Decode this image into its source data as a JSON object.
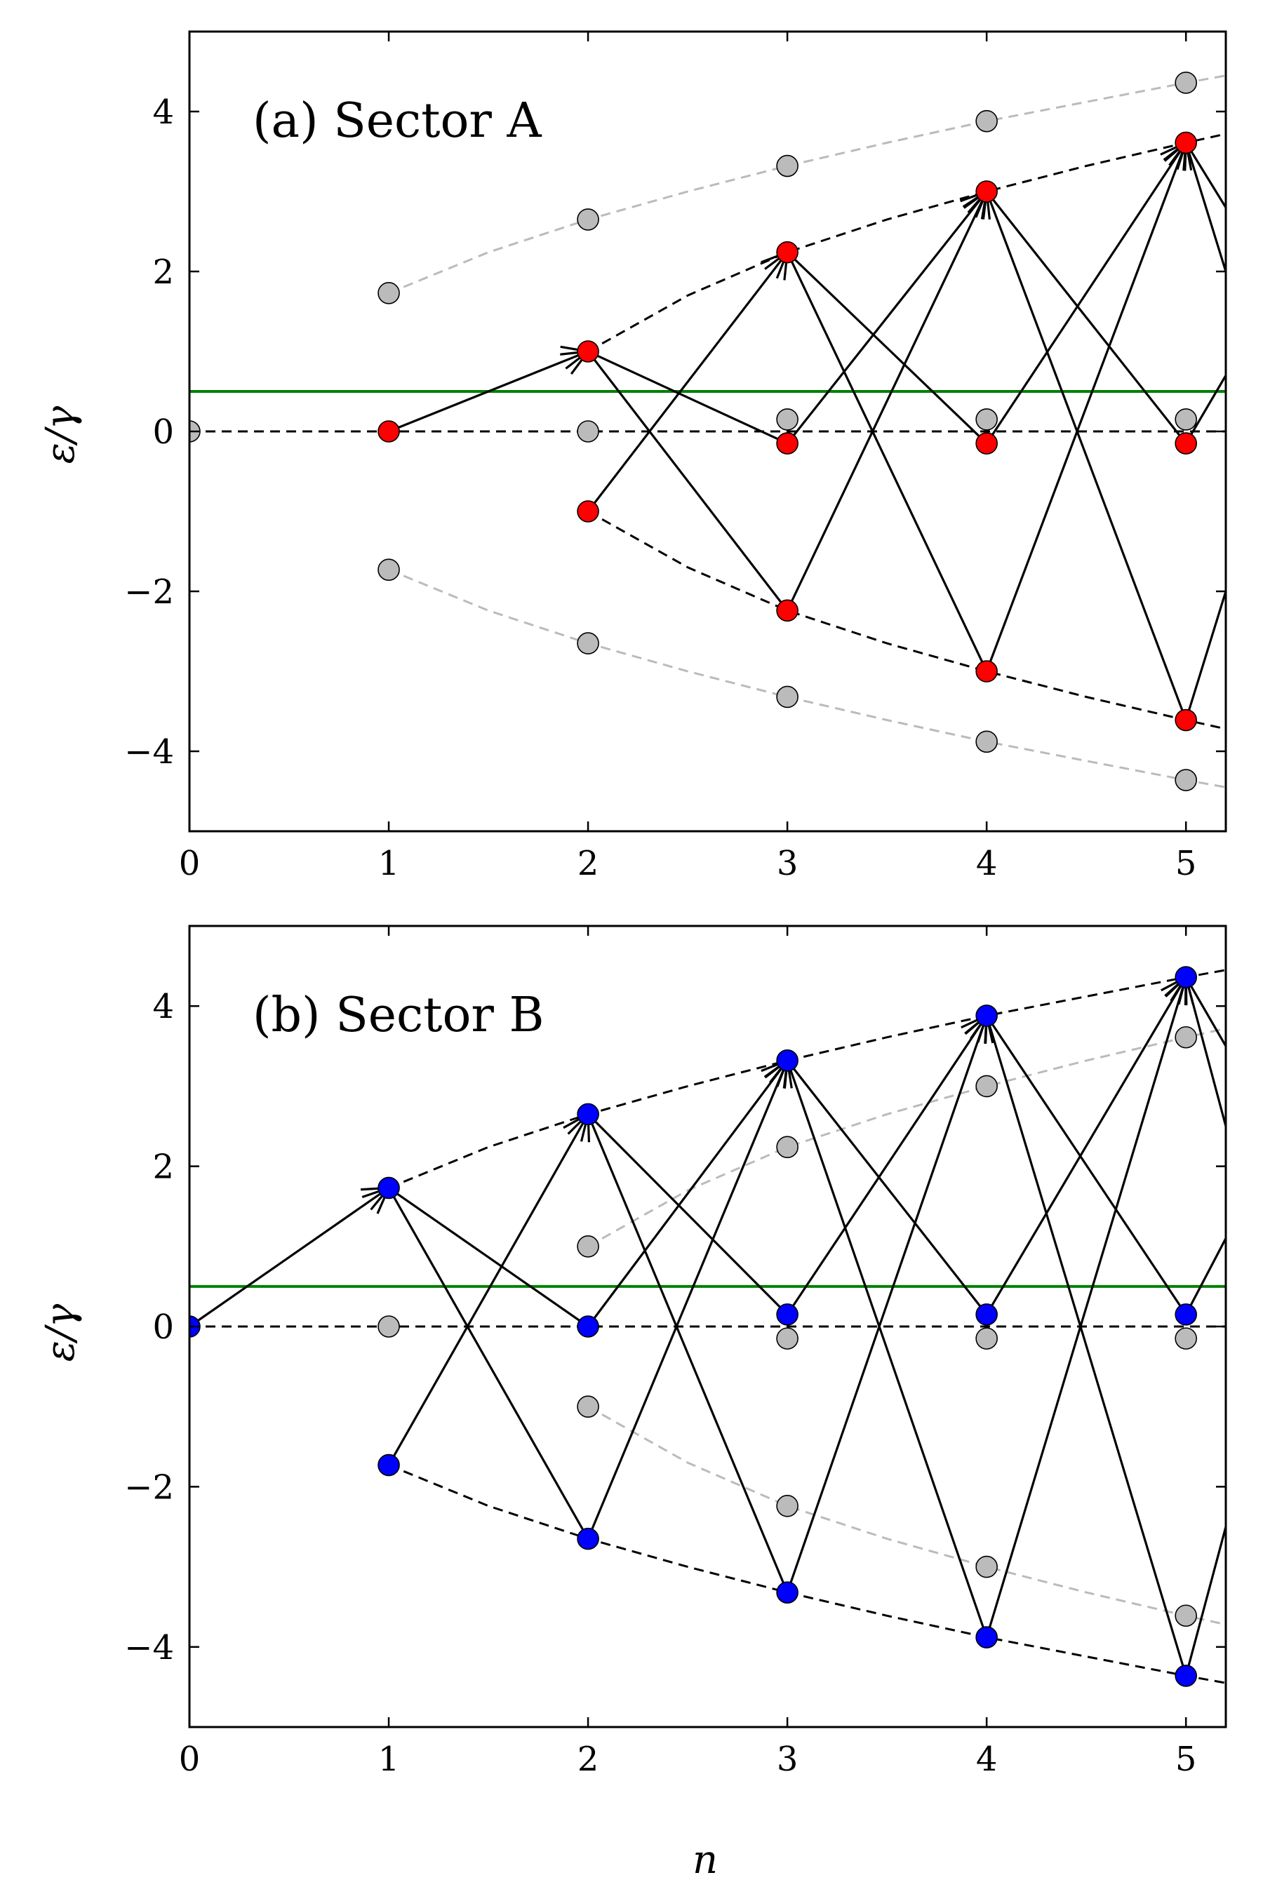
{
  "chart_data": [
    {
      "type": "scatter",
      "title": "(a) Sector A",
      "xlabel": "",
      "ylabel": "ε/γ",
      "xlim": [
        0,
        5.2
      ],
      "ylim": [
        -5,
        5
      ],
      "xticks": [
        "0",
        "1",
        "2",
        "3",
        "4",
        "5"
      ],
      "yticks": [
        "−4",
        "−2",
        "0",
        "2",
        "4"
      ],
      "highlight_color": "#ff0000",
      "gray_points": [
        {
          "n": 0,
          "e": 0
        },
        {
          "n": 1,
          "e": 1.73
        },
        {
          "n": 1,
          "e": -1.73
        },
        {
          "n": 2,
          "e": 2.65
        },
        {
          "n": 2,
          "e": 0
        },
        {
          "n": 2,
          "e": -2.65
        },
        {
          "n": 3,
          "e": 3.32
        },
        {
          "n": 3,
          "e": 0.15
        },
        {
          "n": 3,
          "e": -3.32
        },
        {
          "n": 4,
          "e": 3.88
        },
        {
          "n": 4,
          "e": 0.15
        },
        {
          "n": 4,
          "e": -3.88
        },
        {
          "n": 5,
          "e": 4.36
        },
        {
          "n": 5,
          "e": 0.15
        },
        {
          "n": 5,
          "e": -4.36
        }
      ],
      "colored_points": [
        {
          "n": 1,
          "e": 0
        },
        {
          "n": 2,
          "e": 1.0
        },
        {
          "n": 2,
          "e": -1.0
        },
        {
          "n": 3,
          "e": 2.24
        },
        {
          "n": 3,
          "e": -0.15
        },
        {
          "n": 3,
          "e": -2.24
        },
        {
          "n": 4,
          "e": 3.0
        },
        {
          "n": 4,
          "e": -0.15
        },
        {
          "n": 4,
          "e": -3.0
        },
        {
          "n": 5,
          "e": 3.61
        },
        {
          "n": 5,
          "e": -0.15
        },
        {
          "n": 5,
          "e": -3.61
        }
      ],
      "transitions": [
        {
          "from": [
            1,
            0
          ],
          "to": [
            2,
            1.0
          ],
          "arrow": true
        },
        {
          "from": [
            2,
            -1.0
          ],
          "to": [
            3,
            2.24
          ],
          "arrow": true
        },
        {
          "from": [
            2,
            1.0
          ],
          "to": [
            3,
            -2.24
          ],
          "arrow": false
        },
        {
          "from": [
            2,
            1.0
          ],
          "to": [
            3,
            -0.15
          ],
          "arrow": false
        },
        {
          "from": [
            3,
            -0.15
          ],
          "to": [
            4,
            3.0
          ],
          "arrow": true
        },
        {
          "from": [
            3,
            -2.24
          ],
          "to": [
            4,
            3.0
          ],
          "arrow": true
        },
        {
          "from": [
            3,
            2.24
          ],
          "to": [
            4,
            -0.15
          ],
          "arrow": false
        },
        {
          "from": [
            3,
            2.24
          ],
          "to": [
            4,
            -3.0
          ],
          "arrow": false
        },
        {
          "from": [
            4,
            -0.15
          ],
          "to": [
            5,
            3.61
          ],
          "arrow": true
        },
        {
          "from": [
            4,
            -3.0
          ],
          "to": [
            5,
            3.61
          ],
          "arrow": true
        },
        {
          "from": [
            4,
            3.0
          ],
          "to": [
            5,
            -0.15
          ],
          "arrow": false
        },
        {
          "from": [
            4,
            3.0
          ],
          "to": [
            5,
            -3.61
          ],
          "arrow": false
        },
        {
          "from": [
            5,
            3.61
          ],
          "to": [
            5.2,
            2.8
          ],
          "arrow": false
        },
        {
          "from": [
            5,
            3.61
          ],
          "to": [
            5.2,
            2.0
          ],
          "arrow": false
        },
        {
          "from": [
            5,
            -0.15
          ],
          "to": [
            5.2,
            0.7
          ],
          "arrow": false
        },
        {
          "from": [
            5,
            -3.61
          ],
          "to": [
            5.2,
            -2.0
          ],
          "arrow": false
        }
      ],
      "dashed_curves": [
        {
          "color": "#000000",
          "points": [
            [
              0,
              0
            ],
            [
              5.2,
              0
            ]
          ]
        },
        {
          "color": "#000000",
          "points": [
            [
              2,
              1.0
            ],
            [
              2.5,
              1.7
            ],
            [
              3,
              2.24
            ],
            [
              3.5,
              2.65
            ],
            [
              4,
              3.0
            ],
            [
              4.5,
              3.32
            ],
            [
              5,
              3.61
            ],
            [
              5.2,
              3.72
            ]
          ]
        },
        {
          "color": "#000000",
          "points": [
            [
              2,
              -1.0
            ],
            [
              2.5,
              -1.7
            ],
            [
              3,
              -2.24
            ],
            [
              3.5,
              -2.65
            ],
            [
              4,
              -3.0
            ],
            [
              4.5,
              -3.32
            ],
            [
              5,
              -3.61
            ],
            [
              5.2,
              -3.72
            ]
          ]
        },
        {
          "color": "#bbbbbb",
          "points": [
            [
              1,
              1.73
            ],
            [
              1.5,
              2.24
            ],
            [
              2,
              2.65
            ],
            [
              2.5,
              3.0
            ],
            [
              3,
              3.32
            ],
            [
              3.5,
              3.61
            ],
            [
              4,
              3.88
            ],
            [
              4.5,
              4.12
            ],
            [
              5,
              4.36
            ],
            [
              5.2,
              4.45
            ]
          ]
        },
        {
          "color": "#bbbbbb",
          "points": [
            [
              1,
              -1.73
            ],
            [
              1.5,
              -2.24
            ],
            [
              2,
              -2.65
            ],
            [
              2.5,
              -3.0
            ],
            [
              3,
              -3.32
            ],
            [
              3.5,
              -3.61
            ],
            [
              4,
              -3.88
            ],
            [
              4.5,
              -4.12
            ],
            [
              5,
              -4.36
            ],
            [
              5.2,
              -4.45
            ]
          ]
        }
      ],
      "green_line_y": 0.5
    },
    {
      "type": "scatter",
      "title": "(b) Sector B",
      "xlabel": "n",
      "ylabel": "ε/γ",
      "xlim": [
        0,
        5.2
      ],
      "ylim": [
        -5,
        5
      ],
      "xticks": [
        "0",
        "1",
        "2",
        "3",
        "4",
        "5"
      ],
      "yticks": [
        "−4",
        "−2",
        "0",
        "2",
        "4"
      ],
      "highlight_color": "#0000ff",
      "gray_points": [
        {
          "n": 1,
          "e": 0
        },
        {
          "n": 2,
          "e": 1.0
        },
        {
          "n": 2,
          "e": -1.0
        },
        {
          "n": 3,
          "e": 2.24
        },
        {
          "n": 3,
          "e": -0.15
        },
        {
          "n": 3,
          "e": -2.24
        },
        {
          "n": 4,
          "e": 3.0
        },
        {
          "n": 4,
          "e": -0.15
        },
        {
          "n": 4,
          "e": -3.0
        },
        {
          "n": 5,
          "e": 3.61
        },
        {
          "n": 5,
          "e": -0.15
        },
        {
          "n": 5,
          "e": -3.61
        }
      ],
      "colored_points": [
        {
          "n": 0,
          "e": 0
        },
        {
          "n": 1,
          "e": 1.73
        },
        {
          "n": 1,
          "e": -1.73
        },
        {
          "n": 2,
          "e": 2.65
        },
        {
          "n": 2,
          "e": 0
        },
        {
          "n": 2,
          "e": -2.65
        },
        {
          "n": 3,
          "e": 3.32
        },
        {
          "n": 3,
          "e": 0.15
        },
        {
          "n": 3,
          "e": -3.32
        },
        {
          "n": 4,
          "e": 3.88
        },
        {
          "n": 4,
          "e": 0.15
        },
        {
          "n": 4,
          "e": -3.88
        },
        {
          "n": 5,
          "e": 4.36
        },
        {
          "n": 5,
          "e": 0.15
        },
        {
          "n": 5,
          "e": -4.36
        }
      ],
      "transitions": [
        {
          "from": [
            0,
            0
          ],
          "to": [
            1,
            1.73
          ],
          "arrow": true
        },
        {
          "from": [
            1,
            -1.73
          ],
          "to": [
            2,
            2.65
          ],
          "arrow": true
        },
        {
          "from": [
            1,
            1.73
          ],
          "to": [
            2,
            0
          ],
          "arrow": false
        },
        {
          "from": [
            1,
            1.73
          ],
          "to": [
            2,
            -2.65
          ],
          "arrow": false
        },
        {
          "from": [
            2,
            0
          ],
          "to": [
            3,
            3.32
          ],
          "arrow": true
        },
        {
          "from": [
            2,
            -2.65
          ],
          "to": [
            3,
            3.32
          ],
          "arrow": true
        },
        {
          "from": [
            2,
            2.65
          ],
          "to": [
            3,
            0.15
          ],
          "arrow": false
        },
        {
          "from": [
            2,
            2.65
          ],
          "to": [
            3,
            -3.32
          ],
          "arrow": false
        },
        {
          "from": [
            3,
            0.15
          ],
          "to": [
            4,
            3.88
          ],
          "arrow": true
        },
        {
          "from": [
            3,
            -3.32
          ],
          "to": [
            4,
            3.88
          ],
          "arrow": true
        },
        {
          "from": [
            3,
            3.32
          ],
          "to": [
            4,
            0.15
          ],
          "arrow": false
        },
        {
          "from": [
            3,
            3.32
          ],
          "to": [
            4,
            -3.88
          ],
          "arrow": false
        },
        {
          "from": [
            4,
            0.15
          ],
          "to": [
            5,
            4.36
          ],
          "arrow": true
        },
        {
          "from": [
            4,
            -3.88
          ],
          "to": [
            5,
            4.36
          ],
          "arrow": true
        },
        {
          "from": [
            4,
            3.88
          ],
          "to": [
            5,
            0.15
          ],
          "arrow": false
        },
        {
          "from": [
            4,
            3.88
          ],
          "to": [
            5,
            -4.36
          ],
          "arrow": false
        },
        {
          "from": [
            5,
            4.36
          ],
          "to": [
            5.2,
            3.5
          ],
          "arrow": false
        },
        {
          "from": [
            5,
            4.36
          ],
          "to": [
            5.2,
            2.5
          ],
          "arrow": false
        },
        {
          "from": [
            5,
            0.15
          ],
          "to": [
            5.2,
            1.1
          ],
          "arrow": false
        },
        {
          "from": [
            5,
            -4.36
          ],
          "to": [
            5.2,
            -2.5
          ],
          "arrow": false
        }
      ],
      "dashed_curves": [
        {
          "color": "#000000",
          "points": [
            [
              0,
              0
            ],
            [
              5.2,
              0
            ]
          ]
        },
        {
          "color": "#000000",
          "points": [
            [
              1,
              1.73
            ],
            [
              1.5,
              2.24
            ],
            [
              2,
              2.65
            ],
            [
              2.5,
              3.0
            ],
            [
              3,
              3.32
            ],
            [
              3.5,
              3.61
            ],
            [
              4,
              3.88
            ],
            [
              4.5,
              4.12
            ],
            [
              5,
              4.36
            ],
            [
              5.2,
              4.45
            ]
          ]
        },
        {
          "color": "#000000",
          "points": [
            [
              1,
              -1.73
            ],
            [
              1.5,
              -2.24
            ],
            [
              2,
              -2.65
            ],
            [
              2.5,
              -3.0
            ],
            [
              3,
              -3.32
            ],
            [
              3.5,
              -3.61
            ],
            [
              4,
              -3.88
            ],
            [
              4.5,
              -4.12
            ],
            [
              5,
              -4.36
            ],
            [
              5.2,
              -4.45
            ]
          ]
        },
        {
          "color": "#bbbbbb",
          "points": [
            [
              2,
              1.0
            ],
            [
              2.5,
              1.7
            ],
            [
              3,
              2.24
            ],
            [
              3.5,
              2.65
            ],
            [
              4,
              3.0
            ],
            [
              4.5,
              3.32
            ],
            [
              5,
              3.61
            ],
            [
              5.2,
              3.72
            ]
          ]
        },
        {
          "color": "#bbbbbb",
          "points": [
            [
              2,
              -1.0
            ],
            [
              2.5,
              -1.7
            ],
            [
              3,
              -2.24
            ],
            [
              3.5,
              -2.65
            ],
            [
              4,
              -3.0
            ],
            [
              4.5,
              -3.32
            ],
            [
              5,
              -3.61
            ],
            [
              5.2,
              -3.72
            ]
          ]
        }
      ],
      "green_line_y": 0.5
    }
  ],
  "colors": {
    "gray_marker": "#bbbbbb",
    "green_line": "#008000",
    "line": "#000000"
  }
}
